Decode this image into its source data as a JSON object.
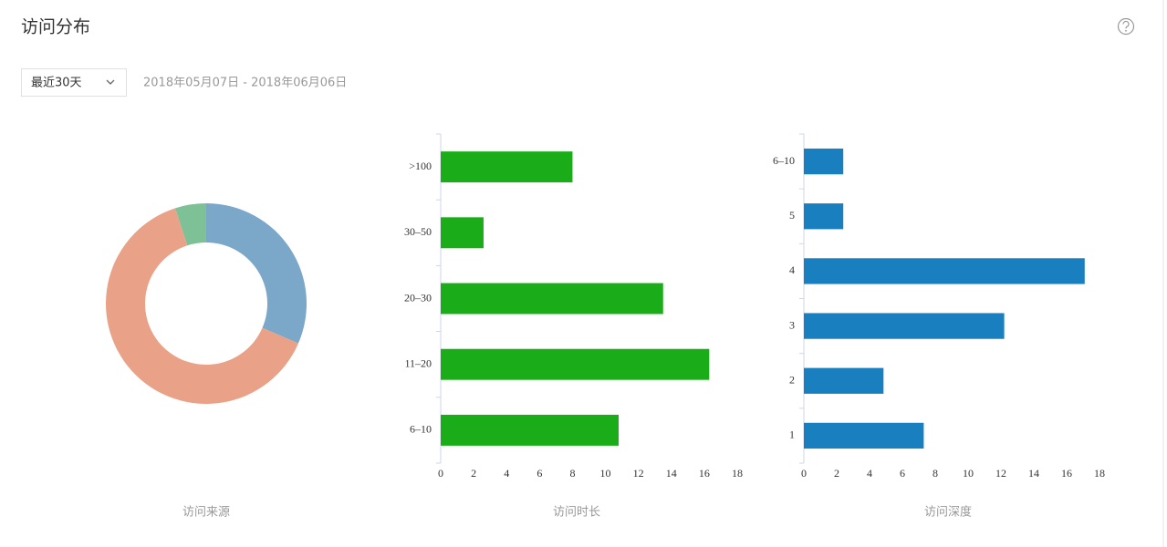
{
  "header": {
    "title": "访问分布"
  },
  "filter": {
    "range": "最近30天",
    "dates": "2018年05月07日 - 2018年06月06日"
  },
  "chart_data": [
    {
      "type": "pie",
      "title": "访问来源",
      "values": [
        31.5,
        63.5,
        5
      ],
      "colors": [
        "#7ba7c9",
        "#e9a287",
        "#7fc196"
      ]
    },
    {
      "type": "bar",
      "title": "访问时长",
      "categories": [
        ">100",
        "30–50",
        "20–30",
        "11–20",
        "6–10"
      ],
      "values": [
        8.0,
        2.6,
        13.5,
        16.3,
        10.8
      ],
      "color": "#1aad19",
      "xlim": [
        0,
        18
      ],
      "xticks": [
        0,
        2,
        4,
        6,
        8,
        10,
        12,
        14,
        16,
        18
      ]
    },
    {
      "type": "bar",
      "title": "访问深度",
      "categories": [
        "6–10",
        "5",
        "4",
        "3",
        "2",
        "1"
      ],
      "values": [
        2.4,
        2.4,
        17.1,
        12.2,
        4.85,
        7.3
      ],
      "color": "#1a7fbf",
      "xlim": [
        0,
        18
      ],
      "xticks": [
        0,
        2,
        4,
        6,
        8,
        10,
        12,
        14,
        16,
        18
      ]
    }
  ]
}
